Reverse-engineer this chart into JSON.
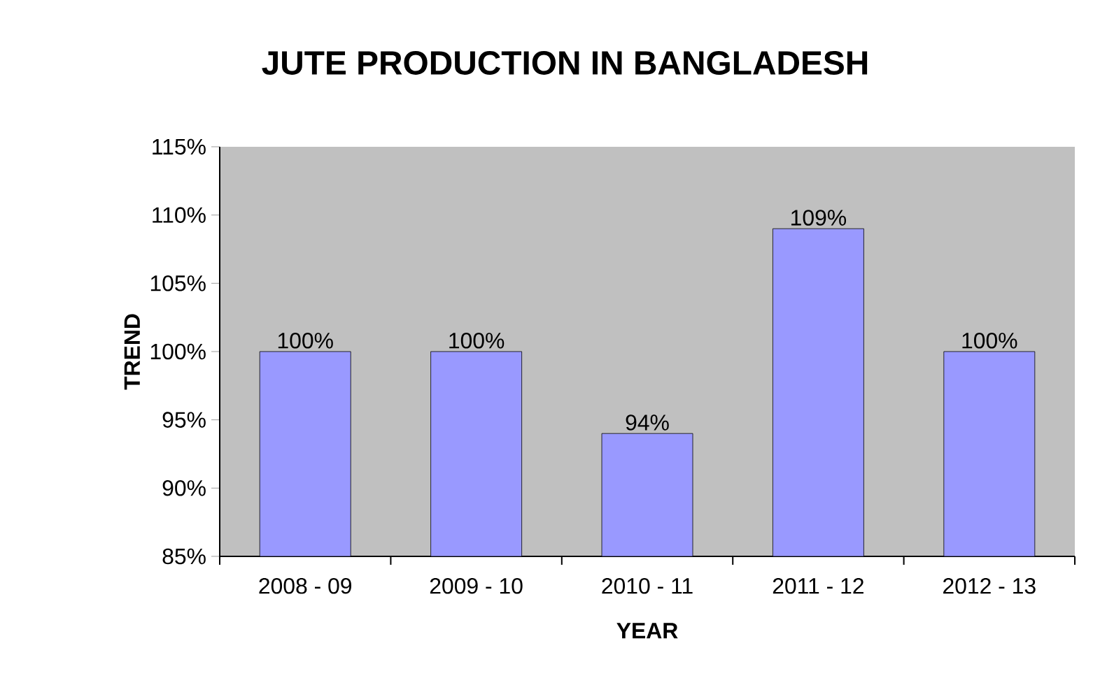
{
  "chart_data": {
    "type": "bar",
    "title": "JUTE PRODUCTION IN BANGLADESH",
    "xlabel": "YEAR",
    "ylabel": "TREND",
    "categories": [
      "2008 - 09",
      "2009 - 10",
      "2010 - 11",
      "2011 - 12",
      "2012 - 13"
    ],
    "values": [
      100,
      100,
      94,
      109,
      100
    ],
    "color": "#9999ff",
    "value_labels": [
      "100%",
      "100%",
      "94%",
      "109%",
      "100%"
    ],
    "ylim": [
      85,
      115
    ],
    "yticks": [
      {
        "value": 85,
        "label": "85%"
      },
      {
        "value": 90,
        "label": "90%"
      },
      {
        "value": 95,
        "label": "95%"
      },
      {
        "value": 100,
        "label": "100%"
      },
      {
        "value": 105,
        "label": "105%"
      },
      {
        "value": 110,
        "label": "110%"
      },
      {
        "value": 115,
        "label": "115%"
      }
    ],
    "grid": false
  }
}
